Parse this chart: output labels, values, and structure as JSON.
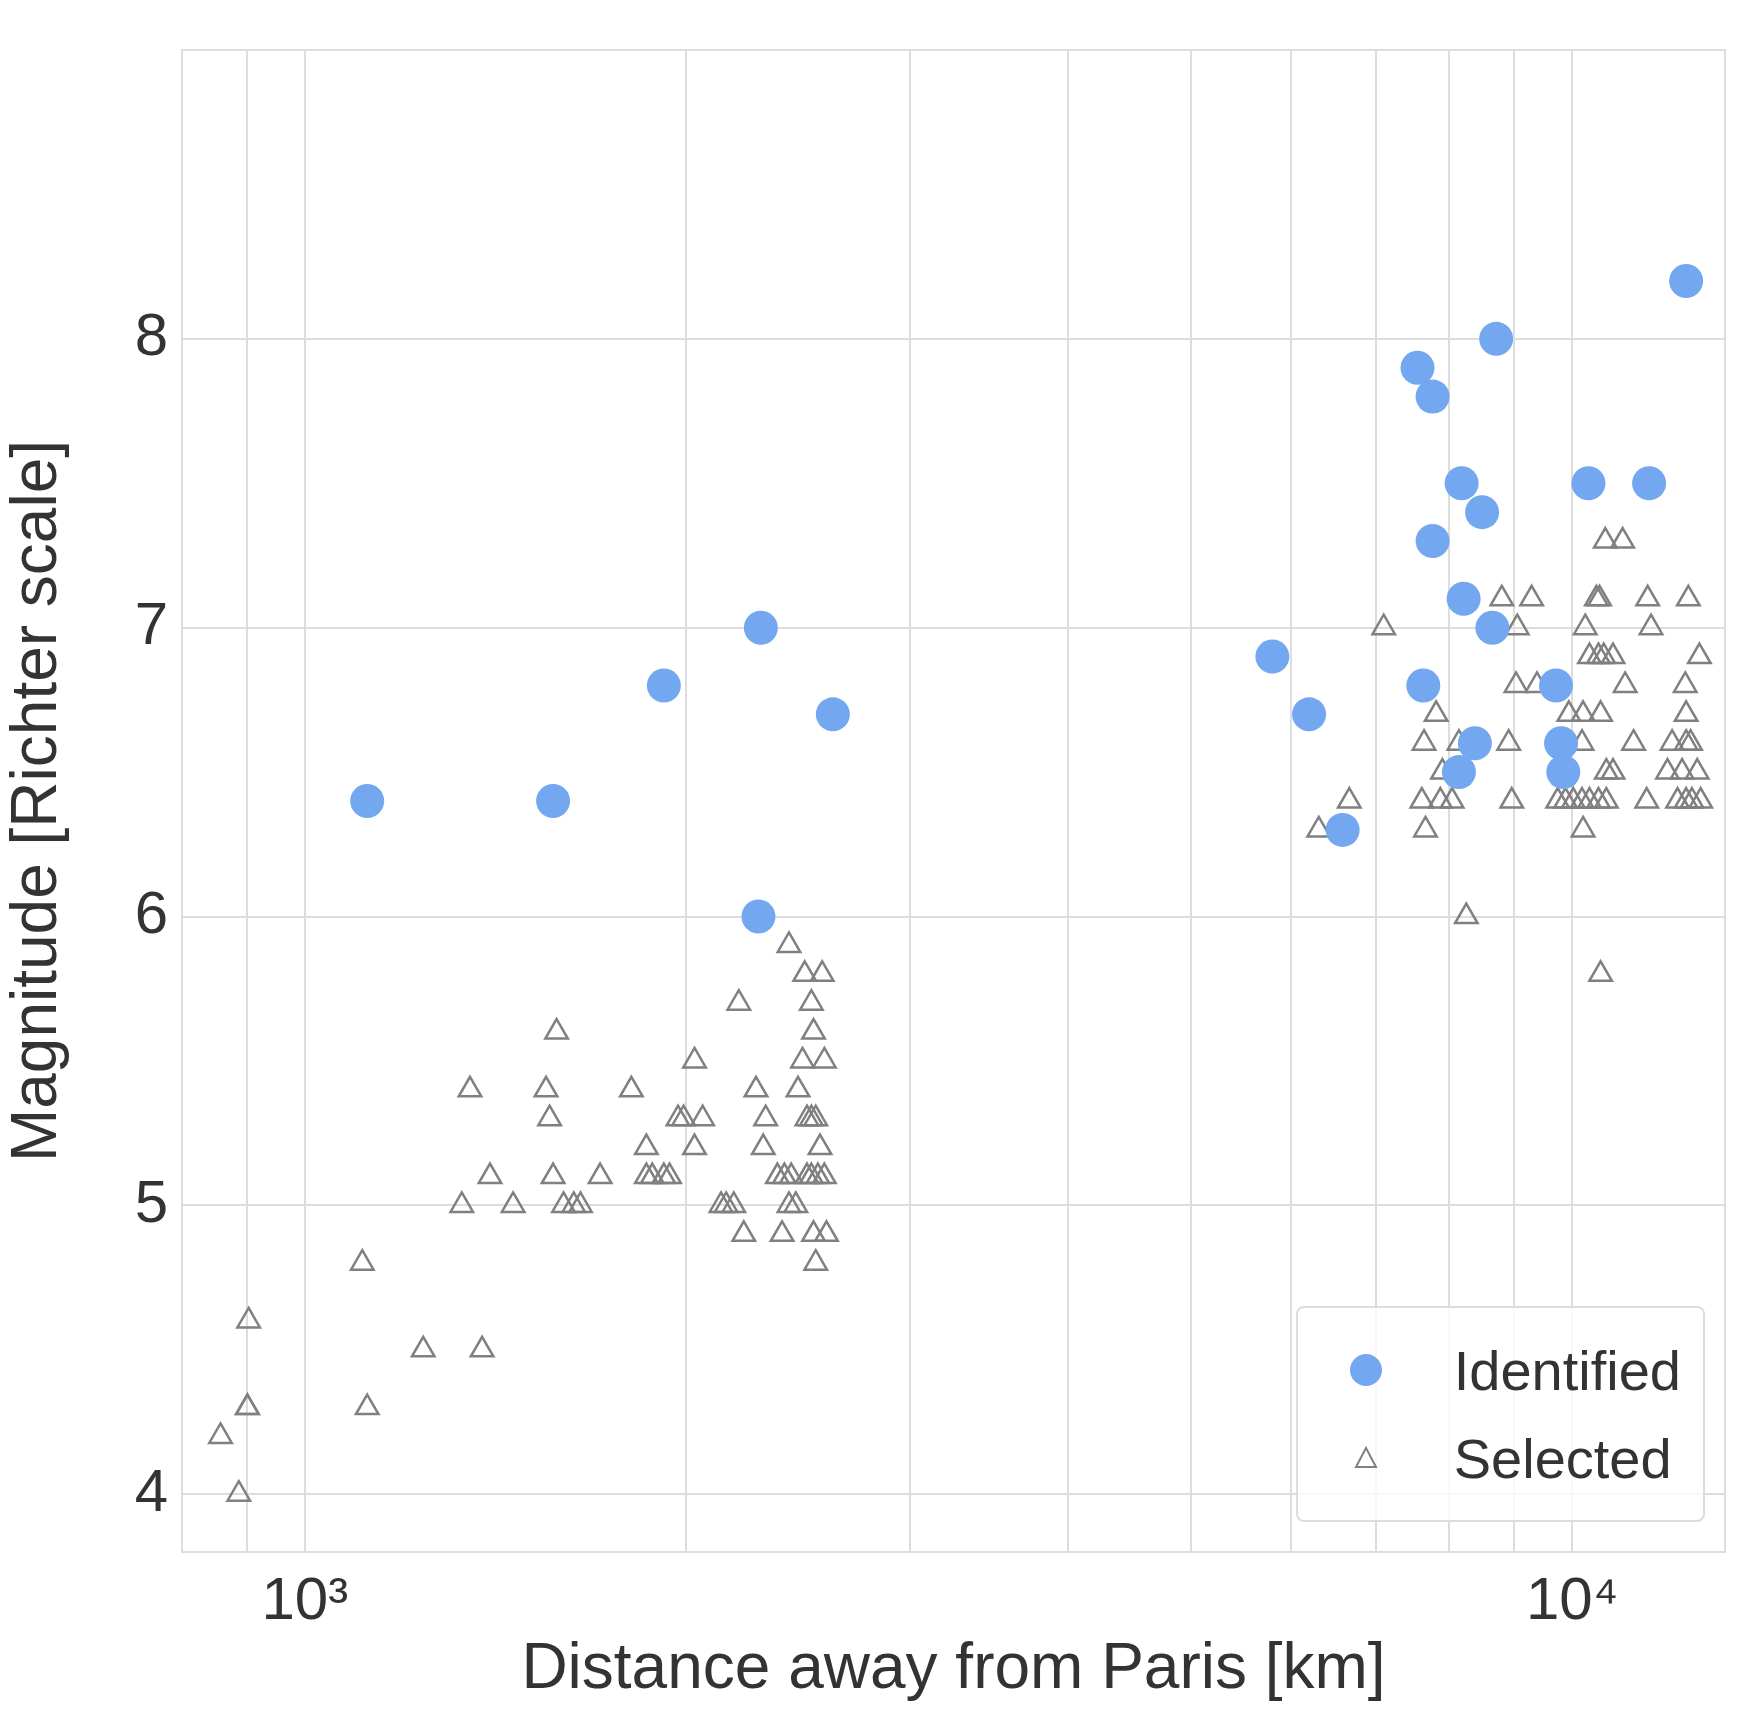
{
  "chart_data": {
    "type": "scatter",
    "xlabel": "Distance away from Paris [km]",
    "ylabel": "Magnitude [Richter scale]",
    "log": "x",
    "grid": true,
    "legend": "bottom right",
    "xlim": [
      800,
      13200
    ],
    "ylim": [
      3.8,
      9.0
    ],
    "xticks": [
      {
        "value": 900,
        "label": null
      },
      {
        "value": 1000,
        "label": "10³"
      },
      {
        "value": 2000,
        "label": null
      },
      {
        "value": 3000,
        "label": null
      },
      {
        "value": 4000,
        "label": null
      },
      {
        "value": 5000,
        "label": null
      },
      {
        "value": 6000,
        "label": null
      },
      {
        "value": 7000,
        "label": null
      },
      {
        "value": 8000,
        "label": null
      },
      {
        "value": 9000,
        "label": null
      },
      {
        "value": 10000,
        "label": "10⁴"
      }
    ],
    "yticks": [
      4,
      5,
      6,
      7,
      8
    ],
    "series": [
      {
        "name": "Identified",
        "color": "#73a7f0",
        "marker": "circle",
        "x": [
          1120,
          1570,
          1920,
          2290,
          2280,
          2610,
          5800,
          6200,
          6590,
          7550,
          7760,
          8710,
          8180,
          8490,
          7760,
          8210,
          8650,
          7630,
          8380,
          8140,
          9710,
          9800,
          9840,
          10300,
          11500,
          12300
        ],
        "values": [
          6.4,
          6.4,
          6.8,
          7.0,
          6.0,
          6.7,
          6.9,
          6.7,
          6.3,
          7.9,
          7.8,
          8.0,
          7.5,
          7.4,
          7.3,
          7.1,
          7.0,
          6.8,
          6.6,
          6.5,
          6.8,
          6.6,
          6.5,
          7.5,
          7.5,
          8.2
        ]
      },
      {
        "name": "Selected",
        "color": "#808080",
        "marker": "triangle",
        "x": [
          858,
          887,
          903,
          901,
          901,
          1110,
          1120,
          1240,
          1380,
          1330,
          1350,
          1400,
          1460,
          1550,
          1560,
          1570,
          1580,
          1600,
          1630,
          1650,
          1710,
          1810,
          1860,
          1860,
          1880,
          1920,
          1940,
          1970,
          1990,
          2030,
          2030,
          2060,
          2130,
          2150,
          2180,
          2200,
          2220,
          2270,
          2300,
          2310,
          2380,
          2410,
          2360,
          2390,
          2420,
          2410,
          2440,
          2450,
          2470,
          2480,
          2490,
          2510,
          2530,
          2490,
          2510,
          2540,
          2570,
          2510,
          2520,
          2550,
          2520,
          2580,
          2530,
          2560,
          2570,
          7100,
          6310,
          6670,
          7640,
          7610,
          7660,
          7810,
          7870,
          8040,
          7900,
          8140,
          8250,
          8800,
          9290,
          9050,
          9030,
          9380,
          8910,
          8960,
          9940,
          10200,
          10530,
          10180,
          9740,
          9880,
          10020,
          10180,
          10320,
          10490,
          10640,
          10200,
          10240,
          10450,
          10510,
          10620,
          10960,
          10320,
          10490,
          10590,
          10770,
          11010,
          10640,
          10770,
          11180,
          11450,
          11470,
          11540,
          12350,
          12600,
          12280,
          12300,
          11990,
          12300,
          12400,
          11890,
          12210,
          12550,
          12110,
          12300,
          12430,
          12630,
          10530
        ],
        "values": [
          4.2,
          4.0,
          4.6,
          4.3,
          4.3,
          4.8,
          4.3,
          4.5,
          4.5,
          5.0,
          5.4,
          5.1,
          5.0,
          5.4,
          5.3,
          5.1,
          5.6,
          5.0,
          5.0,
          5.0,
          5.1,
          5.4,
          5.2,
          5.1,
          5.1,
          5.1,
          5.1,
          5.3,
          5.3,
          5.5,
          5.2,
          5.3,
          5.0,
          5.0,
          5.0,
          5.7,
          4.9,
          5.4,
          5.2,
          5.3,
          4.9,
          5.9,
          5.1,
          5.1,
          5.1,
          5.0,
          5.0,
          5.4,
          5.5,
          5.8,
          5.3,
          5.3,
          5.3,
          5.1,
          5.1,
          5.1,
          5.1,
          5.7,
          5.6,
          5.2,
          4.9,
          4.9,
          4.8,
          5.8,
          5.5,
          7.0,
          6.3,
          6.4,
          6.6,
          6.4,
          6.3,
          6.7,
          6.4,
          6.4,
          6.5,
          6.6,
          6.0,
          7.1,
          7.1,
          7.0,
          6.8,
          6.8,
          6.6,
          6.4,
          6.7,
          6.7,
          6.7,
          6.6,
          6.4,
          6.4,
          6.4,
          6.4,
          6.4,
          6.4,
          6.4,
          6.3,
          7.0,
          7.1,
          7.1,
          7.3,
          7.3,
          6.9,
          6.9,
          6.9,
          6.9,
          6.8,
          6.5,
          6.5,
          6.6,
          6.4,
          7.1,
          7.0,
          7.1,
          6.9,
          6.8,
          6.7,
          6.6,
          6.6,
          6.6,
          6.5,
          6.5,
          6.5,
          6.4,
          6.4,
          6.4,
          6.4,
          5.8
        ]
      }
    ]
  }
}
